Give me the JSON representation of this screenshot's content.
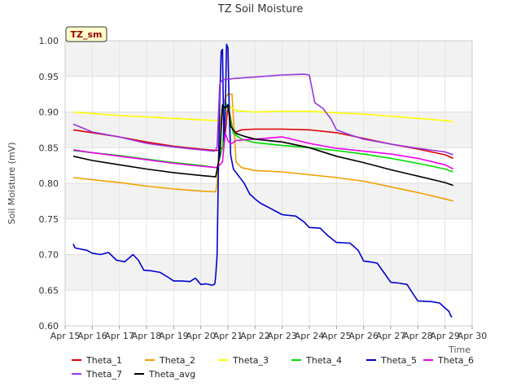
{
  "chart_data": {
    "type": "line",
    "title": "TZ Soil Moisture",
    "badge": "TZ_sm",
    "xlabel": "Time",
    "ylabel": "Soil Moisture (mV)",
    "xlim": [
      15,
      30
    ],
    "ylim": [
      0.6,
      1.0
    ],
    "x_ticks": [
      15,
      16,
      17,
      18,
      19,
      20,
      21,
      22,
      23,
      24,
      25,
      26,
      27,
      28,
      29,
      30
    ],
    "x_tick_labels": [
      "Apr 15",
      "Apr 16",
      "Apr 17",
      "Apr 18",
      "Apr 19",
      "Apr 20",
      "Apr 21",
      "Apr 22",
      "Apr 23",
      "Apr 24",
      "Apr 25",
      "Apr 26",
      "Apr 27",
      "Apr 28",
      "Apr 29",
      "Apr 30"
    ],
    "y_ticks": [
      0.6,
      0.65,
      0.7,
      0.75,
      0.8,
      0.85,
      0.9,
      0.95,
      1.0
    ],
    "y_tick_labels": [
      "0.60",
      "0.65",
      "0.70",
      "0.75",
      "0.80",
      "0.85",
      "0.90",
      "0.95",
      "1.00"
    ],
    "series": [
      {
        "name": "Theta_1",
        "color": "#dd0000",
        "x": [
          15.3,
          16,
          17,
          18,
          19,
          20,
          20.6,
          20.8,
          20.9,
          21.0,
          21.2,
          21.5,
          22,
          23,
          24,
          25,
          26,
          27,
          28,
          29,
          29.3
        ],
        "y": [
          0.875,
          0.871,
          0.865,
          0.858,
          0.852,
          0.848,
          0.846,
          0.85,
          0.87,
          0.91,
          0.87,
          0.875,
          0.876,
          0.876,
          0.875,
          0.871,
          0.863,
          0.855,
          0.848,
          0.84,
          0.835
        ]
      },
      {
        "name": "Theta_2",
        "color": "#f0a000",
        "x": [
          15.3,
          16,
          17,
          18,
          19,
          20,
          20.55,
          20.6,
          20.75,
          20.9,
          21.0,
          21.15,
          21.3,
          21.5,
          22,
          23,
          24,
          25,
          26,
          27,
          28,
          29,
          29.3
        ],
        "y": [
          0.808,
          0.805,
          0.801,
          0.796,
          0.792,
          0.789,
          0.788,
          0.8,
          0.9,
          0.92,
          0.925,
          0.925,
          0.83,
          0.822,
          0.818,
          0.816,
          0.812,
          0.808,
          0.803,
          0.795,
          0.787,
          0.778,
          0.775
        ]
      },
      {
        "name": "Theta_3",
        "color": "#ffff00",
        "x": [
          15.3,
          16,
          17,
          18,
          19,
          20,
          20.6,
          20.75,
          20.9,
          21.0,
          21.3,
          22,
          23,
          24,
          25,
          26,
          27,
          28,
          29,
          29.3
        ],
        "y": [
          0.9,
          0.898,
          0.895,
          0.893,
          0.891,
          0.889,
          0.888,
          0.9,
          0.905,
          0.91,
          0.902,
          0.9,
          0.901,
          0.901,
          0.899,
          0.897,
          0.894,
          0.891,
          0.888,
          0.886
        ]
      },
      {
        "name": "Theta_4",
        "color": "#00dd00",
        "x": [
          15.3,
          16,
          17,
          18,
          19,
          20,
          20.6,
          20.8,
          20.9,
          21.0,
          21.2,
          21.5,
          22,
          23,
          24,
          25,
          26,
          27,
          28,
          29,
          29.3
        ],
        "y": [
          0.846,
          0.843,
          0.839,
          0.834,
          0.829,
          0.825,
          0.822,
          0.85,
          0.915,
          0.905,
          0.87,
          0.862,
          0.857,
          0.853,
          0.85,
          0.846,
          0.841,
          0.835,
          0.828,
          0.82,
          0.816
        ]
      },
      {
        "name": "Theta_5",
        "color": "#0000cc",
        "x": [
          15.3,
          15.35,
          15.4,
          15.8,
          16.0,
          16.3,
          16.6,
          16.9,
          17.2,
          17.5,
          17.7,
          17.9,
          18.2,
          18.5,
          18.8,
          19.0,
          19.3,
          19.6,
          19.8,
          20.0,
          20.2,
          20.4,
          20.5,
          20.52,
          20.55,
          20.6,
          20.65,
          20.7,
          20.75,
          20.8,
          20.85,
          20.9,
          20.95,
          21.0,
          21.05,
          21.1,
          21.2,
          21.4,
          21.6,
          21.8,
          22.0,
          22.2,
          22.5,
          22.8,
          23.0,
          23.5,
          23.8,
          24.0,
          24.4,
          24.7,
          25.0,
          25.5,
          25.8,
          26.0,
          26.2,
          26.5,
          26.8,
          27.0,
          27.3,
          27.6,
          27.8,
          28.0,
          28.5,
          28.8,
          29.0,
          29.15,
          29.2,
          29.25
        ],
        "y": [
          0.715,
          0.71,
          0.709,
          0.706,
          0.702,
          0.7,
          0.703,
          0.692,
          0.69,
          0.7,
          0.692,
          0.678,
          0.677,
          0.675,
          0.668,
          0.663,
          0.663,
          0.662,
          0.667,
          0.658,
          0.659,
          0.657,
          0.658,
          0.66,
          0.67,
          0.7,
          0.82,
          0.92,
          0.985,
          0.988,
          0.86,
          0.9,
          0.995,
          0.99,
          0.9,
          0.84,
          0.82,
          0.81,
          0.8,
          0.785,
          0.778,
          0.772,
          0.766,
          0.76,
          0.756,
          0.754,
          0.746,
          0.738,
          0.737,
          0.726,
          0.717,
          0.716,
          0.706,
          0.691,
          0.69,
          0.688,
          0.672,
          0.661,
          0.66,
          0.658,
          0.646,
          0.635,
          0.634,
          0.632,
          0.625,
          0.62,
          0.615,
          0.612
        ]
      },
      {
        "name": "Theta_6",
        "color": "#ee00ee",
        "x": [
          15.3,
          16,
          17,
          18,
          19,
          20,
          20.6,
          20.8,
          20.9,
          21.0,
          21.1,
          21.3,
          21.6,
          22,
          23,
          24,
          25,
          26,
          27,
          28,
          29,
          29.3
        ],
        "y": [
          0.847,
          0.843,
          0.838,
          0.833,
          0.828,
          0.824,
          0.822,
          0.83,
          0.87,
          0.86,
          0.855,
          0.86,
          0.861,
          0.862,
          0.865,
          0.856,
          0.849,
          0.845,
          0.841,
          0.835,
          0.826,
          0.82
        ]
      },
      {
        "name": "Theta_7",
        "color": "#9933dd",
        "x": [
          15.3,
          16,
          17,
          18,
          19,
          20,
          20.5,
          20.6,
          20.7,
          20.8,
          20.9,
          21.0,
          21.2,
          22,
          23,
          23.8,
          24.0,
          24.2,
          24.5,
          24.8,
          25.0,
          25.5,
          26,
          27,
          28,
          29,
          29.3
        ],
        "y": [
          0.883,
          0.872,
          0.865,
          0.856,
          0.851,
          0.847,
          0.845,
          0.85,
          0.94,
          0.945,
          0.946,
          0.946,
          0.947,
          0.949,
          0.952,
          0.953,
          0.952,
          0.913,
          0.905,
          0.89,
          0.875,
          0.868,
          0.862,
          0.855,
          0.849,
          0.844,
          0.84
        ]
      },
      {
        "name": "Theta_avg",
        "color": "#000000",
        "x": [
          15.3,
          16,
          17,
          18,
          19,
          20,
          20.55,
          20.7,
          20.8,
          20.9,
          21.0,
          21.1,
          21.3,
          21.6,
          22,
          23,
          24,
          25,
          26,
          27,
          28,
          29,
          29.3
        ],
        "y": [
          0.838,
          0.832,
          0.826,
          0.82,
          0.815,
          0.811,
          0.809,
          0.84,
          0.91,
          0.905,
          0.91,
          0.88,
          0.87,
          0.866,
          0.862,
          0.858,
          0.85,
          0.838,
          0.829,
          0.819,
          0.81,
          0.801,
          0.797
        ]
      }
    ]
  }
}
